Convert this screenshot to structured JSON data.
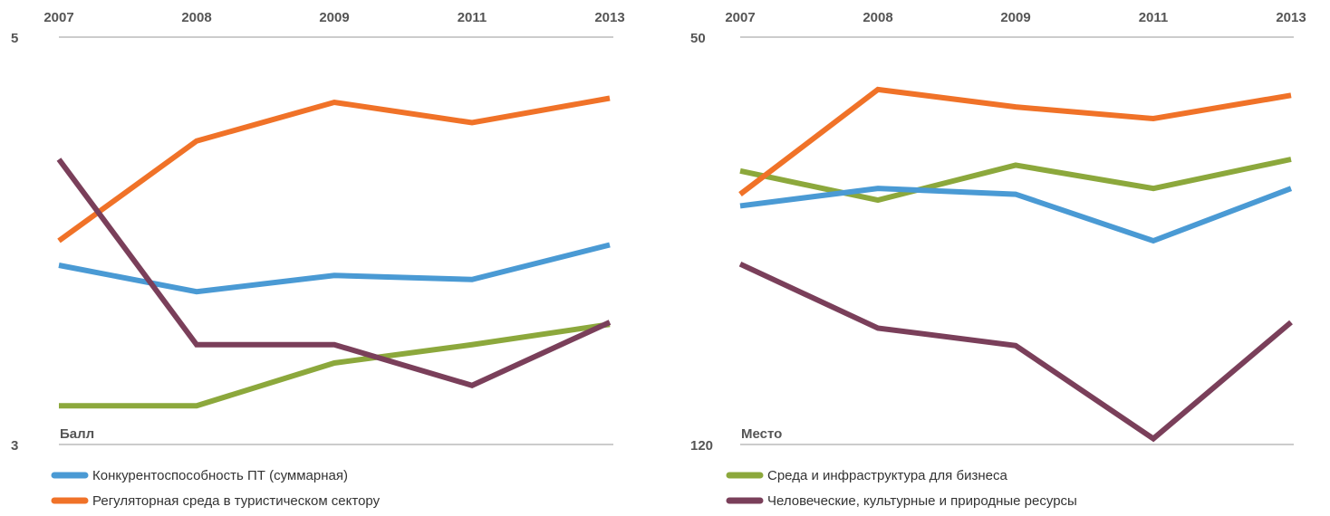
{
  "chart_data": [
    {
      "type": "line",
      "ylabel": "Балл",
      "categories": [
        "2007",
        "2008",
        "2009",
        "2011",
        "2013"
      ],
      "ylim": [
        3,
        5
      ],
      "yticks": [
        3,
        5
      ],
      "grid": true,
      "series": [
        {
          "name": "Конкурентоспособность ПТ (суммарная)",
          "color": "#4a9ad4",
          "values": [
            3.88,
            3.75,
            3.83,
            3.81,
            3.98
          ]
        },
        {
          "name": "Регуляторная среда в туристическом сектору",
          "color": "#f07228",
          "values": [
            4.0,
            4.49,
            4.68,
            4.58,
            4.7
          ]
        },
        {
          "color": "#8ca83c",
          "values": [
            3.19,
            3.19,
            3.4,
            3.49,
            3.59
          ]
        },
        {
          "color": "#7a3f5a",
          "values": [
            4.4,
            3.49,
            3.49,
            3.29,
            3.6
          ]
        }
      ]
    },
    {
      "type": "line",
      "ylabel": "Место",
      "categories": [
        "2007",
        "2008",
        "2009",
        "2011",
        "2013"
      ],
      "ylim": [
        120,
        50
      ],
      "yticks": [
        50,
        120
      ],
      "grid": true,
      "series": [
        {
          "name": "Среда и инфраструктура для бизнеса",
          "color": "#8ca83c",
          "values": [
            73,
            78,
            72,
            76,
            71
          ]
        },
        {
          "name": "Человеческие, культурные и природные ресурсы",
          "color": "#7a3f5a",
          "values": [
            89,
            100,
            103,
            119,
            99
          ]
        },
        {
          "color": "#4a9ad4",
          "values": [
            79,
            76,
            77,
            85,
            76
          ]
        },
        {
          "color": "#f07228",
          "values": [
            77,
            59,
            62,
            64,
            60
          ]
        }
      ]
    }
  ]
}
